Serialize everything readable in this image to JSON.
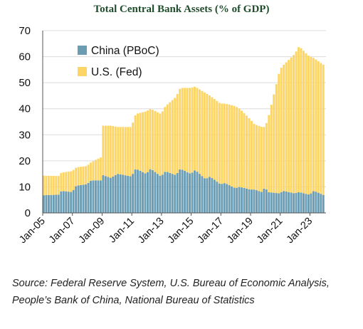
{
  "chart_data": {
    "type": "area",
    "title": "Total Central Bank Assets (% of GDP)",
    "xlabel": "",
    "ylabel": "",
    "ylim": [
      0,
      70
    ],
    "yticks": [
      0,
      10,
      20,
      30,
      40,
      50,
      60,
      70
    ],
    "xrange": [
      2005.0,
      2024.08
    ],
    "xticks": [
      {
        "label": "Jan-05",
        "x": 2005
      },
      {
        "label": "Jan-07",
        "x": 2007
      },
      {
        "label": "Jan-09",
        "x": 2009
      },
      {
        "label": "Jan-11",
        "x": 2011
      },
      {
        "label": "Jan-13",
        "x": 2013
      },
      {
        "label": "Jan-15",
        "x": 2015
      },
      {
        "label": "Jan-17",
        "x": 2017
      },
      {
        "label": "Jan-19",
        "x": 2019
      },
      {
        "label": "Jan-21",
        "x": 2021
      },
      {
        "label": "Jan-23",
        "x": 2023
      }
    ],
    "grid": true,
    "legend_position": "top-left",
    "stacked": true,
    "series": [
      {
        "name": "China (PBoC)",
        "color": "#6a9cb3",
        "points": [
          [
            2005.0,
            6.8
          ],
          [
            2006.0,
            7.0
          ],
          [
            2006.2,
            8.5
          ],
          [
            2006.9,
            8.0
          ],
          [
            2007.2,
            10.5
          ],
          [
            2007.9,
            11.0
          ],
          [
            2008.2,
            12.5
          ],
          [
            2008.9,
            12.5
          ],
          [
            2009.0,
            14.5
          ],
          [
            2009.5,
            13.5
          ],
          [
            2010.0,
            15.0
          ],
          [
            2010.9,
            14.0
          ],
          [
            2011.2,
            17.0
          ],
          [
            2011.9,
            15.0
          ],
          [
            2012.2,
            17.0
          ],
          [
            2012.9,
            14.0
          ],
          [
            2013.2,
            16.0
          ],
          [
            2013.9,
            14.5
          ],
          [
            2014.2,
            17.0
          ],
          [
            2014.9,
            15.0
          ],
          [
            2015.2,
            16.5
          ],
          [
            2015.9,
            13.0
          ],
          [
            2016.2,
            14.0
          ],
          [
            2016.9,
            11.0
          ],
          [
            2017.2,
            11.5
          ],
          [
            2017.9,
            9.5
          ],
          [
            2018.2,
            10.0
          ],
          [
            2018.9,
            9.0
          ],
          [
            2019.2,
            9.0
          ],
          [
            2019.7,
            8.0
          ],
          [
            2019.9,
            10.0
          ],
          [
            2020.1,
            8.0
          ],
          [
            2020.9,
            7.5
          ],
          [
            2021.1,
            8.5
          ],
          [
            2021.9,
            7.5
          ],
          [
            2022.2,
            8.0
          ],
          [
            2022.9,
            7.0
          ],
          [
            2023.2,
            8.5
          ],
          [
            2023.8,
            7.0
          ],
          [
            2024.0,
            6.5
          ]
        ]
      },
      {
        "name": "U.S. (Fed)",
        "color": "#fdd565",
        "points": [
          [
            2005.0,
            7.5
          ],
          [
            2006.0,
            7.2
          ],
          [
            2006.2,
            7.0
          ],
          [
            2006.9,
            8.0
          ],
          [
            2007.2,
            7.0
          ],
          [
            2007.9,
            7.0
          ],
          [
            2008.2,
            7.0
          ],
          [
            2008.9,
            9.0
          ],
          [
            2009.0,
            19.0
          ],
          [
            2009.5,
            20.0
          ],
          [
            2010.0,
            18.0
          ],
          [
            2010.9,
            19.0
          ],
          [
            2011.2,
            21.0
          ],
          [
            2011.9,
            24.0
          ],
          [
            2012.2,
            23.0
          ],
          [
            2012.9,
            24.0
          ],
          [
            2013.2,
            25.0
          ],
          [
            2013.9,
            30.0
          ],
          [
            2014.2,
            31.0
          ],
          [
            2014.9,
            33.0
          ],
          [
            2015.2,
            32.0
          ],
          [
            2015.9,
            33.0
          ],
          [
            2016.2,
            31.0
          ],
          [
            2016.9,
            31.0
          ],
          [
            2017.2,
            30.5
          ],
          [
            2017.9,
            31.5
          ],
          [
            2018.2,
            30.0
          ],
          [
            2018.9,
            27.0
          ],
          [
            2019.2,
            25.0
          ],
          [
            2019.7,
            25.0
          ],
          [
            2019.9,
            23.0
          ],
          [
            2020.1,
            28.0
          ],
          [
            2020.9,
            47.5
          ],
          [
            2021.1,
            48.0
          ],
          [
            2021.9,
            53.5
          ],
          [
            2022.2,
            56.0
          ],
          [
            2022.9,
            53.0
          ],
          [
            2023.2,
            51.0
          ],
          [
            2023.8,
            50.0
          ],
          [
            2024.0,
            50.0
          ]
        ]
      }
    ],
    "source": "Source: Federal Reserve System, U.S. Bureau of Economic Analysis, People’s Bank of China, National Bureau of Statistics"
  }
}
